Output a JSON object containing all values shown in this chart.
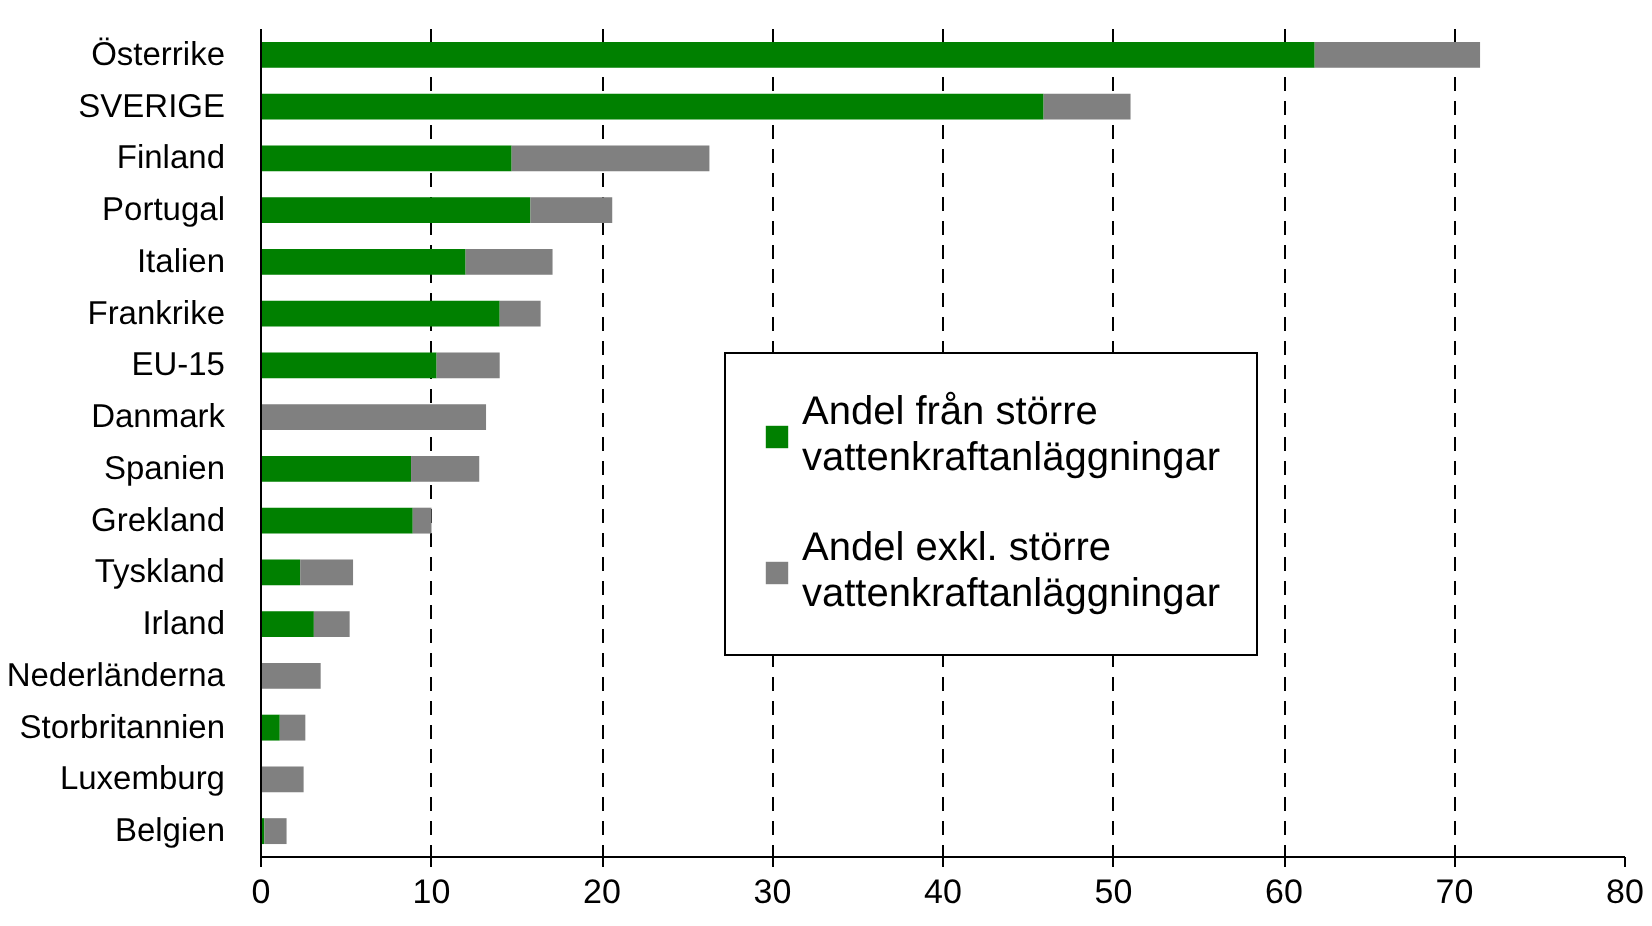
{
  "chart_data": {
    "type": "bar",
    "orientation": "horizontal",
    "stacked": true,
    "categories": [
      "Österrike",
      "SVERIGE",
      "Finland",
      "Portugal",
      "Italien",
      "Frankrike",
      "EU-15",
      "Danmark",
      "Spanien",
      "Grekland",
      "Tyskland",
      "Irland",
      "Nederländerna",
      "Storbritannien",
      "Luxemburg",
      "Belgien"
    ],
    "series": [
      {
        "name": "Andel från större vattenkraftanläggningar",
        "color": "#008000",
        "values": [
          61.8,
          45.9,
          14.7,
          15.8,
          12.0,
          14.0,
          10.3,
          0,
          8.8,
          8.9,
          2.3,
          3.1,
          0,
          1.1,
          0,
          0.2
        ]
      },
      {
        "name": "Andel exkl. större vattenkraftanläggningar",
        "color": "#808080",
        "values": [
          9.7,
          5.1,
          11.6,
          4.8,
          5.1,
          2.4,
          3.7,
          13.2,
          4.0,
          1.1,
          3.1,
          2.1,
          3.5,
          1.5,
          2.5,
          1.3
        ]
      }
    ],
    "xlim": [
      0,
      80
    ],
    "xticks": [
      0,
      10,
      20,
      30,
      40,
      50,
      60,
      70,
      80
    ],
    "grid": "x",
    "legend": "right"
  }
}
